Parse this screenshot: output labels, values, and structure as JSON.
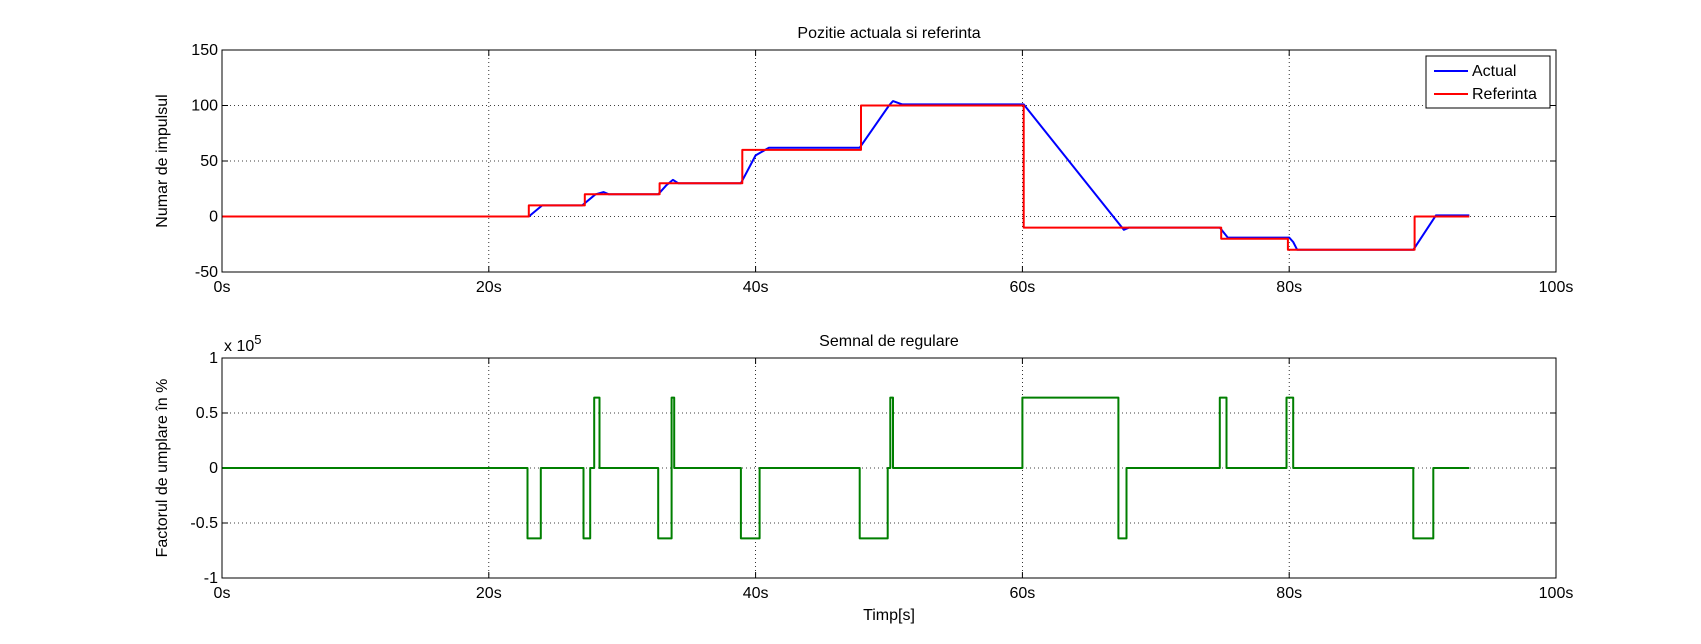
{
  "chart_data": [
    {
      "type": "line",
      "title": "Pozitie actuala si referinta",
      "xlabel": "",
      "ylabel": "Numar de impulsul",
      "xlim": [
        0,
        100
      ],
      "ylim": [
        -50,
        150
      ],
      "xticks": [
        0,
        20,
        40,
        60,
        80,
        100
      ],
      "xtick_labels": [
        "0s",
        "20s",
        "40s",
        "60s",
        "80s",
        "100s"
      ],
      "yticks": [
        -50,
        0,
        50,
        100,
        150
      ],
      "ytick_labels": [
        "-50",
        "0",
        "50",
        "100",
        "150"
      ],
      "grid": true,
      "legend_position": "top-right",
      "series": [
        {
          "name": "Actual",
          "color": "#0000ff",
          "x": [
            0,
            23,
            24,
            27,
            28,
            28.6,
            29,
            32.7,
            33.3,
            33.8,
            34.2,
            38.9,
            40,
            41,
            47.8,
            50,
            50.3,
            51,
            60.1,
            67.6,
            68,
            74.8,
            75.4,
            80,
            80.3,
            80.6,
            89.3,
            91,
            93.5
          ],
          "y": [
            0,
            0,
            10,
            10,
            20,
            22,
            20,
            20,
            28,
            33,
            30,
            30,
            55,
            62,
            62,
            100,
            104,
            101,
            101,
            -12,
            -10,
            -10,
            -19,
            -19,
            -23,
            -30,
            -30,
            1,
            1
          ]
        },
        {
          "name": "Referinta",
          "color": "#ff0000",
          "x": [
            0,
            23,
            23,
            27.2,
            27.2,
            32.8,
            32.8,
            39,
            39,
            47.9,
            47.9,
            60.1,
            60.1,
            74.9,
            74.9,
            79.9,
            79.9,
            89.4,
            89.4,
            93.5
          ],
          "y": [
            0,
            0,
            10,
            10,
            20,
            20,
            30,
            30,
            60,
            60,
            100,
            100,
            -10,
            -10,
            -20,
            -20,
            -30,
            -30,
            0,
            0
          ]
        }
      ]
    },
    {
      "type": "line",
      "title": "Semnal de regulare",
      "xlabel": "Timp[s]",
      "ylabel": "Factorul de umplare în %",
      "multiplier_label": "x 10",
      "multiplier_exponent": "5",
      "xlim": [
        0,
        100
      ],
      "ylim": [
        -1,
        1
      ],
      "xticks": [
        0,
        20,
        40,
        60,
        80,
        100
      ],
      "xtick_labels": [
        "0s",
        "20s",
        "40s",
        "60s",
        "80s",
        "100s"
      ],
      "yticks": [
        -1,
        -0.5,
        0,
        0.5,
        1
      ],
      "ytick_labels": [
        "-1",
        "-0.5",
        "0",
        "0.5",
        "1"
      ],
      "grid": true,
      "series": [
        {
          "name": "",
          "color": "#007f00",
          "x": [
            0,
            22.9,
            22.9,
            23.9,
            23.9,
            27.1,
            27.1,
            27.6,
            27.6,
            27.9,
            27.9,
            28.1,
            28.1,
            28.3,
            28.3,
            32.7,
            32.7,
            33.7,
            33.7,
            33.9,
            33.9,
            38.9,
            38.9,
            40.3,
            40.3,
            47.8,
            47.8,
            49.9,
            49.9,
            50.1,
            50.1,
            50.3,
            50.3,
            60.0,
            60.0,
            67.2,
            67.2,
            67.8,
            67.8,
            74.8,
            74.8,
            75.3,
            75.3,
            79.8,
            79.8,
            80.3,
            80.3,
            89.3,
            89.3,
            90.8,
            90.8,
            93.5
          ],
          "y": [
            0,
            0,
            -0.64,
            -0.64,
            0,
            0,
            -0.64,
            -0.64,
            0,
            0,
            0.64,
            0.64,
            0.64,
            0.64,
            0,
            0,
            -0.64,
            -0.64,
            0.64,
            0.64,
            0,
            0,
            -0.64,
            -0.64,
            0,
            0,
            -0.64,
            -0.64,
            0,
            0,
            0.64,
            0.64,
            0,
            0,
            0.64,
            0.64,
            -0.64,
            -0.64,
            0,
            0,
            0.64,
            0.64,
            0,
            0,
            0.64,
            0.64,
            0,
            0,
            -0.64,
            -0.64,
            0,
            0
          ]
        }
      ]
    }
  ]
}
